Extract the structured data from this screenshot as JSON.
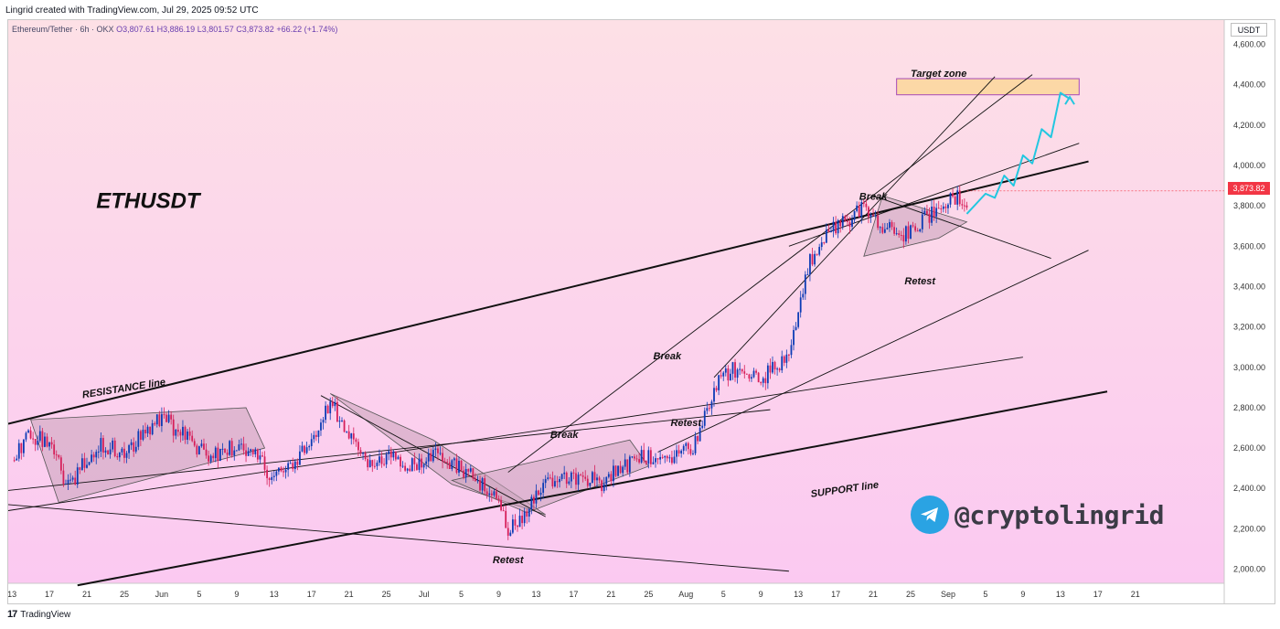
{
  "header": {
    "text": "Lingrid created with TradingView.com, Jul 29, 2025 09:52 UTC"
  },
  "symbol": {
    "name": "Ethereum/Tether · 6h · OKX",
    "open": "O3,807.61",
    "high": "H3,886.19",
    "low": "L3,801.57",
    "close": "C3,873.82",
    "change": "+66.22 (+1.74%)"
  },
  "currency_label": "USDT",
  "last_price_label": "3,873.82",
  "watermark": {
    "handle": "@cryptolingrid",
    "icon": "telegram-icon"
  },
  "footer": {
    "brand": "TradingView",
    "icon": "tradingview-logo-icon"
  },
  "colors": {
    "bull": "#0b3bb5",
    "bear": "#d61f5a",
    "trendline": "#111111",
    "projection": "#22c7e0",
    "target_fill": "#fcd8a6",
    "target_border": "#a64ab8",
    "pattern_fill": "#c9a3b9",
    "last_price": "#f23645"
  },
  "chart_data": {
    "type": "candlestick",
    "title": "ETHUSDT",
    "ylim": [
      1930,
      4720
    ],
    "y_ticks": [
      "2,000.00",
      "2,200.00",
      "2,400.00",
      "2,600.00",
      "2,800.00",
      "3,000.00",
      "3,200.00",
      "3,400.00",
      "3,600.00",
      "3,800.00",
      "4,000.00",
      "4,200.00",
      "4,400.00",
      "4,600.00"
    ],
    "x_ticks": [
      "13",
      "17",
      "21",
      "25",
      "Jun",
      "5",
      "9",
      "13",
      "17",
      "21",
      "25",
      "Jul",
      "5",
      "9",
      "13",
      "17",
      "21",
      "25",
      "Aug",
      "5",
      "9",
      "13",
      "17",
      "21",
      "25",
      "Sep",
      "5",
      "9",
      "13",
      "17",
      "21"
    ],
    "x_tick_first_day": 13,
    "x_tick_step_days": 4,
    "x_lim_days": [
      12.6,
      142.5
    ],
    "last_price": 3873.82,
    "price_path": [
      [
        13,
        2540
      ],
      [
        15,
        2660
      ],
      [
        17,
        2620
      ],
      [
        19,
        2400
      ],
      [
        21,
        2560
      ],
      [
        23,
        2620
      ],
      [
        25,
        2560
      ],
      [
        27,
        2680
      ],
      [
        29,
        2750
      ],
      [
        31,
        2680
      ],
      [
        33,
        2580
      ],
      [
        35,
        2560
      ],
      [
        37,
        2610
      ],
      [
        39,
        2560
      ],
      [
        41,
        2450
      ],
      [
        43,
        2500
      ],
      [
        45,
        2650
      ],
      [
        47,
        2840
      ],
      [
        49,
        2660
      ],
      [
        51,
        2530
      ],
      [
        53,
        2560
      ],
      [
        55,
        2510
      ],
      [
        57,
        2550
      ],
      [
        59,
        2560
      ],
      [
        61,
        2500
      ],
      [
        63,
        2420
      ],
      [
        65,
        2350
      ],
      [
        66,
        2190
      ],
      [
        68,
        2300
      ],
      [
        70,
        2440
      ],
      [
        72,
        2450
      ],
      [
        74,
        2460
      ],
      [
        76,
        2430
      ],
      [
        78,
        2500
      ],
      [
        80,
        2560
      ],
      [
        82,
        2530
      ],
      [
        84,
        2580
      ],
      [
        86,
        2620
      ],
      [
        88,
        2900
      ],
      [
        90,
        3000
      ],
      [
        92,
        2940
      ],
      [
        94,
        2970
      ],
      [
        96,
        3080
      ],
      [
        98,
        3500
      ],
      [
        100,
        3650
      ],
      [
        102,
        3720
      ],
      [
        104,
        3800
      ],
      [
        106,
        3710
      ],
      [
        108,
        3640
      ],
      [
        110,
        3720
      ],
      [
        112,
        3790
      ],
      [
        114,
        3850
      ],
      [
        115,
        3820
      ]
    ],
    "annotations": [
      {
        "label": "Target zone",
        "day": 112,
        "price": 4440
      },
      {
        "label": "Break",
        "day": 105,
        "price": 3830
      },
      {
        "label": "Retest",
        "day": 110,
        "price": 3410
      },
      {
        "label": "Break",
        "day": 83,
        "price": 3040
      },
      {
        "label": "Retest",
        "day": 85,
        "price": 2710
      },
      {
        "label": "Break",
        "day": 72,
        "price": 2650
      },
      {
        "label": "Retest",
        "day": 66,
        "price": 2030
      },
      {
        "label": "RESISTANCE line",
        "day": 25,
        "price": 2880
      },
      {
        "label": "SUPPORT line",
        "day": 102,
        "price": 2380
      }
    ],
    "target_zone": {
      "day_start": 107.5,
      "day_end": 127,
      "price_low": 4350,
      "price_high": 4430
    },
    "trendlines": [
      {
        "style": "main",
        "points": [
          [
            12.6,
            2720
          ],
          [
            128,
            4020
          ]
        ]
      },
      {
        "style": "main",
        "points": [
          [
            20,
            1920
          ],
          [
            130,
            2880
          ]
        ]
      },
      {
        "style": "thin",
        "points": [
          [
            12.6,
            2290
          ],
          [
            121,
            3050
          ]
        ]
      },
      {
        "style": "thin",
        "points": [
          [
            12.6,
            2390
          ],
          [
            94,
            2790
          ]
        ]
      },
      {
        "style": "thin",
        "points": [
          [
            12.6,
            2320
          ],
          [
            96,
            1990
          ]
        ]
      },
      {
        "style": "thin",
        "points": [
          [
            66,
            2480
          ],
          [
            122,
            4450
          ]
        ]
      },
      {
        "style": "thin",
        "points": [
          [
            82,
            2580
          ],
          [
            128,
            3580
          ]
        ]
      },
      {
        "style": "thin",
        "points": [
          [
            88,
            2950
          ],
          [
            118,
            4440
          ]
        ]
      },
      {
        "style": "thin",
        "points": [
          [
            96,
            3600
          ],
          [
            127,
            4110
          ]
        ]
      },
      {
        "style": "thin",
        "points": [
          [
            105,
            3850
          ],
          [
            124,
            3540
          ]
        ]
      },
      {
        "style": "thin",
        "points": [
          [
            46,
            2860
          ],
          [
            70,
            2260
          ]
        ]
      }
    ],
    "patterns": [
      [
        [
          15,
          2740
        ],
        [
          38,
          2800
        ],
        [
          40,
          2600
        ],
        [
          18,
          2330
        ]
      ],
      [
        [
          47,
          2870
        ],
        [
          58,
          2640
        ],
        [
          70,
          2270
        ],
        [
          60,
          2420
        ]
      ],
      [
        [
          60,
          2440
        ],
        [
          79,
          2640
        ],
        [
          81,
          2510
        ],
        [
          68,
          2280
        ]
      ],
      [
        [
          106,
          3850
        ],
        [
          115,
          3720
        ],
        [
          112,
          3640
        ],
        [
          104,
          3550
        ]
      ]
    ],
    "projection": [
      [
        115,
        3760
      ],
      [
        117,
        3860
      ],
      [
        118,
        3840
      ],
      [
        119,
        3950
      ],
      [
        120,
        3900
      ],
      [
        121,
        4050
      ],
      [
        122,
        4010
      ],
      [
        123,
        4180
      ],
      [
        124,
        4140
      ],
      [
        125,
        4360
      ],
      [
        126,
        4330
      ]
    ]
  }
}
